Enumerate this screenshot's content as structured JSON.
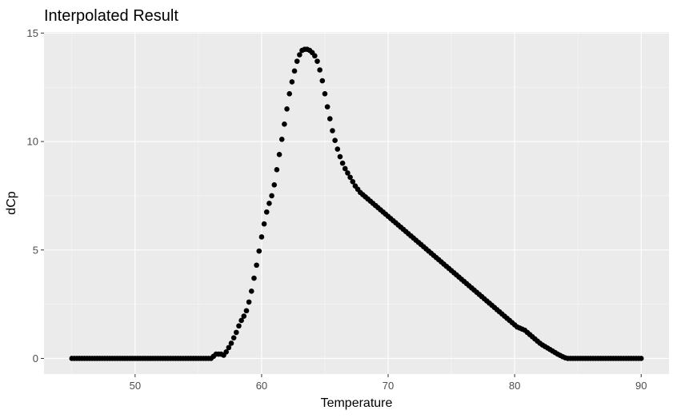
{
  "chart_data": {
    "type": "scatter",
    "title": "Interpolated Result",
    "xlabel": "Temperature",
    "ylabel": "dCp",
    "xlim": [
      42.8,
      92.2
    ],
    "ylim": [
      -0.72,
      15.05
    ],
    "x_ticks": [
      50,
      60,
      70,
      80,
      90
    ],
    "y_ticks": [
      0,
      5,
      10,
      15
    ],
    "x_tick_labels": [
      "50",
      "60",
      "70",
      "80",
      "90"
    ],
    "y_tick_labels": [
      "0",
      "5",
      "10",
      "15"
    ],
    "grid": true,
    "legend": "none",
    "x": [
      45.0,
      45.2,
      45.4,
      45.6,
      45.8,
      46.0,
      46.2,
      46.4,
      46.6,
      46.8,
      47.0,
      47.2,
      47.4,
      47.6,
      47.8,
      48.0,
      48.2,
      48.4,
      48.6,
      48.8,
      49.0,
      49.2,
      49.4,
      49.6,
      49.8,
      50.0,
      50.2,
      50.4,
      50.6,
      50.8,
      51.0,
      51.2,
      51.4,
      51.6,
      51.8,
      52.0,
      52.2,
      52.4,
      52.6,
      52.8,
      53.0,
      53.2,
      53.4,
      53.6,
      53.8,
      54.0,
      54.2,
      54.4,
      54.6,
      54.8,
      55.0,
      55.2,
      55.4,
      55.6,
      55.8,
      56.0,
      56.2,
      56.4,
      56.6,
      56.8,
      57.0,
      57.2,
      57.4,
      57.6,
      57.8,
      58.0,
      58.2,
      58.4,
      58.6,
      58.8,
      59.0,
      59.2,
      59.4,
      59.6,
      59.8,
      60.0,
      60.2,
      60.4,
      60.6,
      60.8,
      61.0,
      61.2,
      61.4,
      61.6,
      61.8,
      62.0,
      62.2,
      62.4,
      62.6,
      62.8,
      63.0,
      63.2,
      63.4,
      63.6,
      63.8,
      64.0,
      64.2,
      64.4,
      64.6,
      64.8,
      65.0,
      65.2,
      65.4,
      65.6,
      65.8,
      66.0,
      66.2,
      66.4,
      66.6,
      66.8,
      67.0,
      67.2,
      67.4,
      67.6,
      67.8,
      68.0,
      68.2,
      68.4,
      68.6,
      68.8,
      69.0,
      69.2,
      69.4,
      69.6,
      69.8,
      70.0,
      70.2,
      70.4,
      70.6,
      70.8,
      71.0,
      71.2,
      71.4,
      71.6,
      71.8,
      72.0,
      72.2,
      72.4,
      72.6,
      72.8,
      73.0,
      73.2,
      73.4,
      73.6,
      73.8,
      74.0,
      74.2,
      74.4,
      74.6,
      74.8,
      75.0,
      75.2,
      75.4,
      75.6,
      75.8,
      76.0,
      76.2,
      76.4,
      76.6,
      76.8,
      77.0,
      77.2,
      77.4,
      77.6,
      77.8,
      78.0,
      78.2,
      78.4,
      78.6,
      78.8,
      79.0,
      79.2,
      79.4,
      79.6,
      79.8,
      80.0,
      80.2,
      80.4,
      80.6,
      80.8,
      81.0,
      81.2,
      81.4,
      81.6,
      81.8,
      82.0,
      82.2,
      82.4,
      82.6,
      82.8,
      83.0,
      83.2,
      83.4,
      83.6,
      83.8,
      84.0,
      84.2,
      84.4,
      84.6,
      84.8,
      85.0,
      85.2,
      85.4,
      85.6,
      85.8,
      86.0,
      86.2,
      86.4,
      86.6,
      86.8,
      87.0,
      87.2,
      87.4,
      87.6,
      87.8,
      88.0,
      88.2,
      88.4,
      88.6,
      88.8,
      89.0,
      89.2,
      89.4,
      89.6,
      89.8,
      90.0
    ],
    "y": [
      0.0,
      0.0,
      0.0,
      0.0,
      0.0,
      0.0,
      0.0,
      0.0,
      0.0,
      0.0,
      0.0,
      0.0,
      0.0,
      0.0,
      0.0,
      0.0,
      0.0,
      0.0,
      0.0,
      0.0,
      0.0,
      0.0,
      0.0,
      0.0,
      0.0,
      0.0,
      0.0,
      0.0,
      0.0,
      0.0,
      0.0,
      0.0,
      0.0,
      0.0,
      0.0,
      0.0,
      0.0,
      0.0,
      0.0,
      0.0,
      0.0,
      0.0,
      0.0,
      0.0,
      0.0,
      0.0,
      0.0,
      0.0,
      0.0,
      0.0,
      0.0,
      0.0,
      0.0,
      0.0,
      0.0,
      0.0,
      0.1,
      0.2,
      0.2,
      0.2,
      0.15,
      0.3,
      0.5,
      0.7,
      0.95,
      1.2,
      1.5,
      1.75,
      1.95,
      2.2,
      2.6,
      3.1,
      3.7,
      4.3,
      4.95,
      5.6,
      6.2,
      6.75,
      7.15,
      7.5,
      8.0,
      8.7,
      9.4,
      10.1,
      10.8,
      11.5,
      12.2,
      12.75,
      13.25,
      13.7,
      14.0,
      14.2,
      14.25,
      14.25,
      14.2,
      14.1,
      13.95,
      13.7,
      13.3,
      12.8,
      12.2,
      11.6,
      11.05,
      10.5,
      10.05,
      9.65,
      9.3,
      9.0,
      8.75,
      8.55,
      8.35,
      8.15,
      7.95,
      7.8,
      7.65,
      7.55,
      7.45,
      7.35,
      7.25,
      7.15,
      7.05,
      6.95,
      6.85,
      6.75,
      6.65,
      6.55,
      6.45,
      6.35,
      6.25,
      6.15,
      6.05,
      5.95,
      5.85,
      5.75,
      5.65,
      5.55,
      5.45,
      5.35,
      5.25,
      5.15,
      5.05,
      4.95,
      4.85,
      4.75,
      4.65,
      4.55,
      4.45,
      4.35,
      4.25,
      4.15,
      4.05,
      3.95,
      3.85,
      3.75,
      3.65,
      3.55,
      3.45,
      3.35,
      3.25,
      3.15,
      3.05,
      2.95,
      2.85,
      2.75,
      2.65,
      2.55,
      2.45,
      2.35,
      2.25,
      2.15,
      2.05,
      1.95,
      1.85,
      1.75,
      1.65,
      1.55,
      1.45,
      1.4,
      1.35,
      1.3,
      1.2,
      1.1,
      1.0,
      0.9,
      0.8,
      0.7,
      0.62,
      0.55,
      0.48,
      0.41,
      0.34,
      0.27,
      0.2,
      0.14,
      0.08,
      0.03,
      0.0,
      0.0,
      0.0,
      0.0,
      0.0,
      0.0,
      0.0,
      0.0,
      0.0,
      0.0,
      0.0,
      0.0,
      0.0,
      0.0,
      0.0,
      0.0,
      0.0,
      0.0,
      0.0,
      0.0,
      0.0,
      0.0,
      0.0,
      0.0,
      0.0,
      0.0,
      0.0,
      0.0,
      0.0,
      0.0
    ],
    "colors": {
      "panel_background": "#EBEBEB",
      "grid_major": "#FFFFFF",
      "grid_minor": "#F7F7F7",
      "point": "#000000",
      "tick_text": "#4D4D4D",
      "title_text": "#000000"
    }
  }
}
